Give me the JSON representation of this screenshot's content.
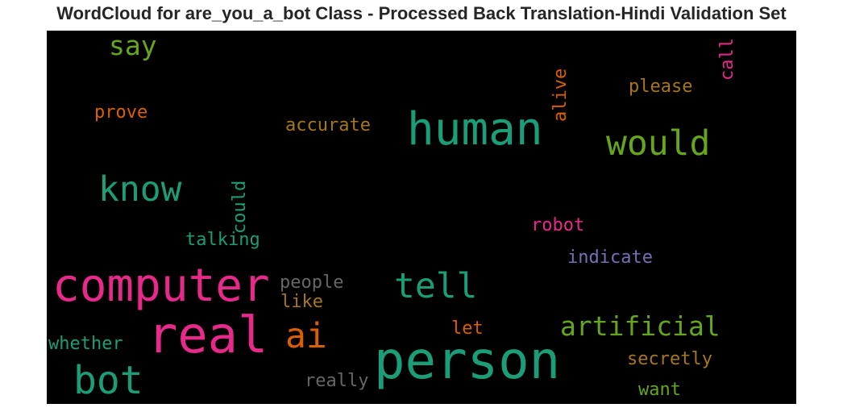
{
  "title": "WordCloud for are_you_a_bot Class - Processed Back Translation-Hindi Validation Set",
  "wordcloud": {
    "words": [
      {
        "text": "say",
        "color": "#66a61e"
      },
      {
        "text": "human",
        "color": "#1b9e77"
      },
      {
        "text": "would",
        "color": "#66a61e"
      },
      {
        "text": "call",
        "color": "#e7298a"
      },
      {
        "text": "please",
        "color": "#a6761d"
      },
      {
        "text": "alive",
        "color": "#d95f02"
      },
      {
        "text": "prove",
        "color": "#d95f02"
      },
      {
        "text": "accurate",
        "color": "#a6761d"
      },
      {
        "text": "know",
        "color": "#1b9e77"
      },
      {
        "text": "could",
        "color": "#1b9e77"
      },
      {
        "text": "talking",
        "color": "#1b9e77"
      },
      {
        "text": "robot",
        "color": "#e7298a"
      },
      {
        "text": "indicate",
        "color": "#7570b3"
      },
      {
        "text": "computer",
        "color": "#e7298a"
      },
      {
        "text": "people",
        "color": "#666666"
      },
      {
        "text": "like",
        "color": "#a6761d"
      },
      {
        "text": "tell",
        "color": "#1b9e77"
      },
      {
        "text": "artificial",
        "color": "#66a61e"
      },
      {
        "text": "whether",
        "color": "#1b9e77"
      },
      {
        "text": "real",
        "color": "#e7298a"
      },
      {
        "text": "ai",
        "color": "#d95f02"
      },
      {
        "text": "let",
        "color": "#d95f02"
      },
      {
        "text": "secretly",
        "color": "#a6761d"
      },
      {
        "text": "bot",
        "color": "#1b9e77"
      },
      {
        "text": "person",
        "color": "#1b9e77"
      },
      {
        "text": "really",
        "color": "#666666"
      },
      {
        "text": "want",
        "color": "#66a61e"
      }
    ]
  }
}
